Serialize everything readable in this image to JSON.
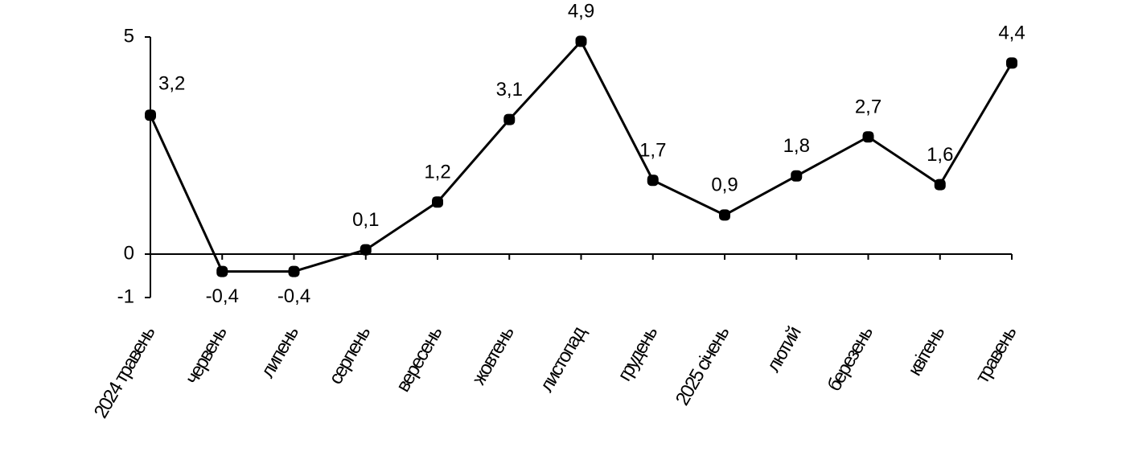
{
  "chart_data": {
    "type": "line",
    "categories": [
      "2024 травень",
      "червень",
      "липень",
      "серпень",
      "вересень",
      "жовтень",
      "листопад",
      "грудень",
      "2025 січень",
      "лютий",
      "березень",
      "квітень",
      "травень"
    ],
    "series": [
      {
        "color": "#000000",
        "values": [
          3.2,
          -0.4,
          -0.4,
          0.1,
          1.2,
          3.1,
          4.9,
          1.7,
          0.9,
          1.8,
          2.7,
          1.6,
          4.4
        ],
        "value_labels": [
          "3,2",
          "-0,4",
          "-0,4",
          "0,1",
          "1,2",
          "3,1",
          "4,9",
          "1,7",
          "0,9",
          "1,8",
          "2,7",
          "1,6",
          "4,4"
        ]
      }
    ],
    "ylim": [
      -1,
      5
    ],
    "yticks": [
      -1,
      0,
      5
    ]
  }
}
